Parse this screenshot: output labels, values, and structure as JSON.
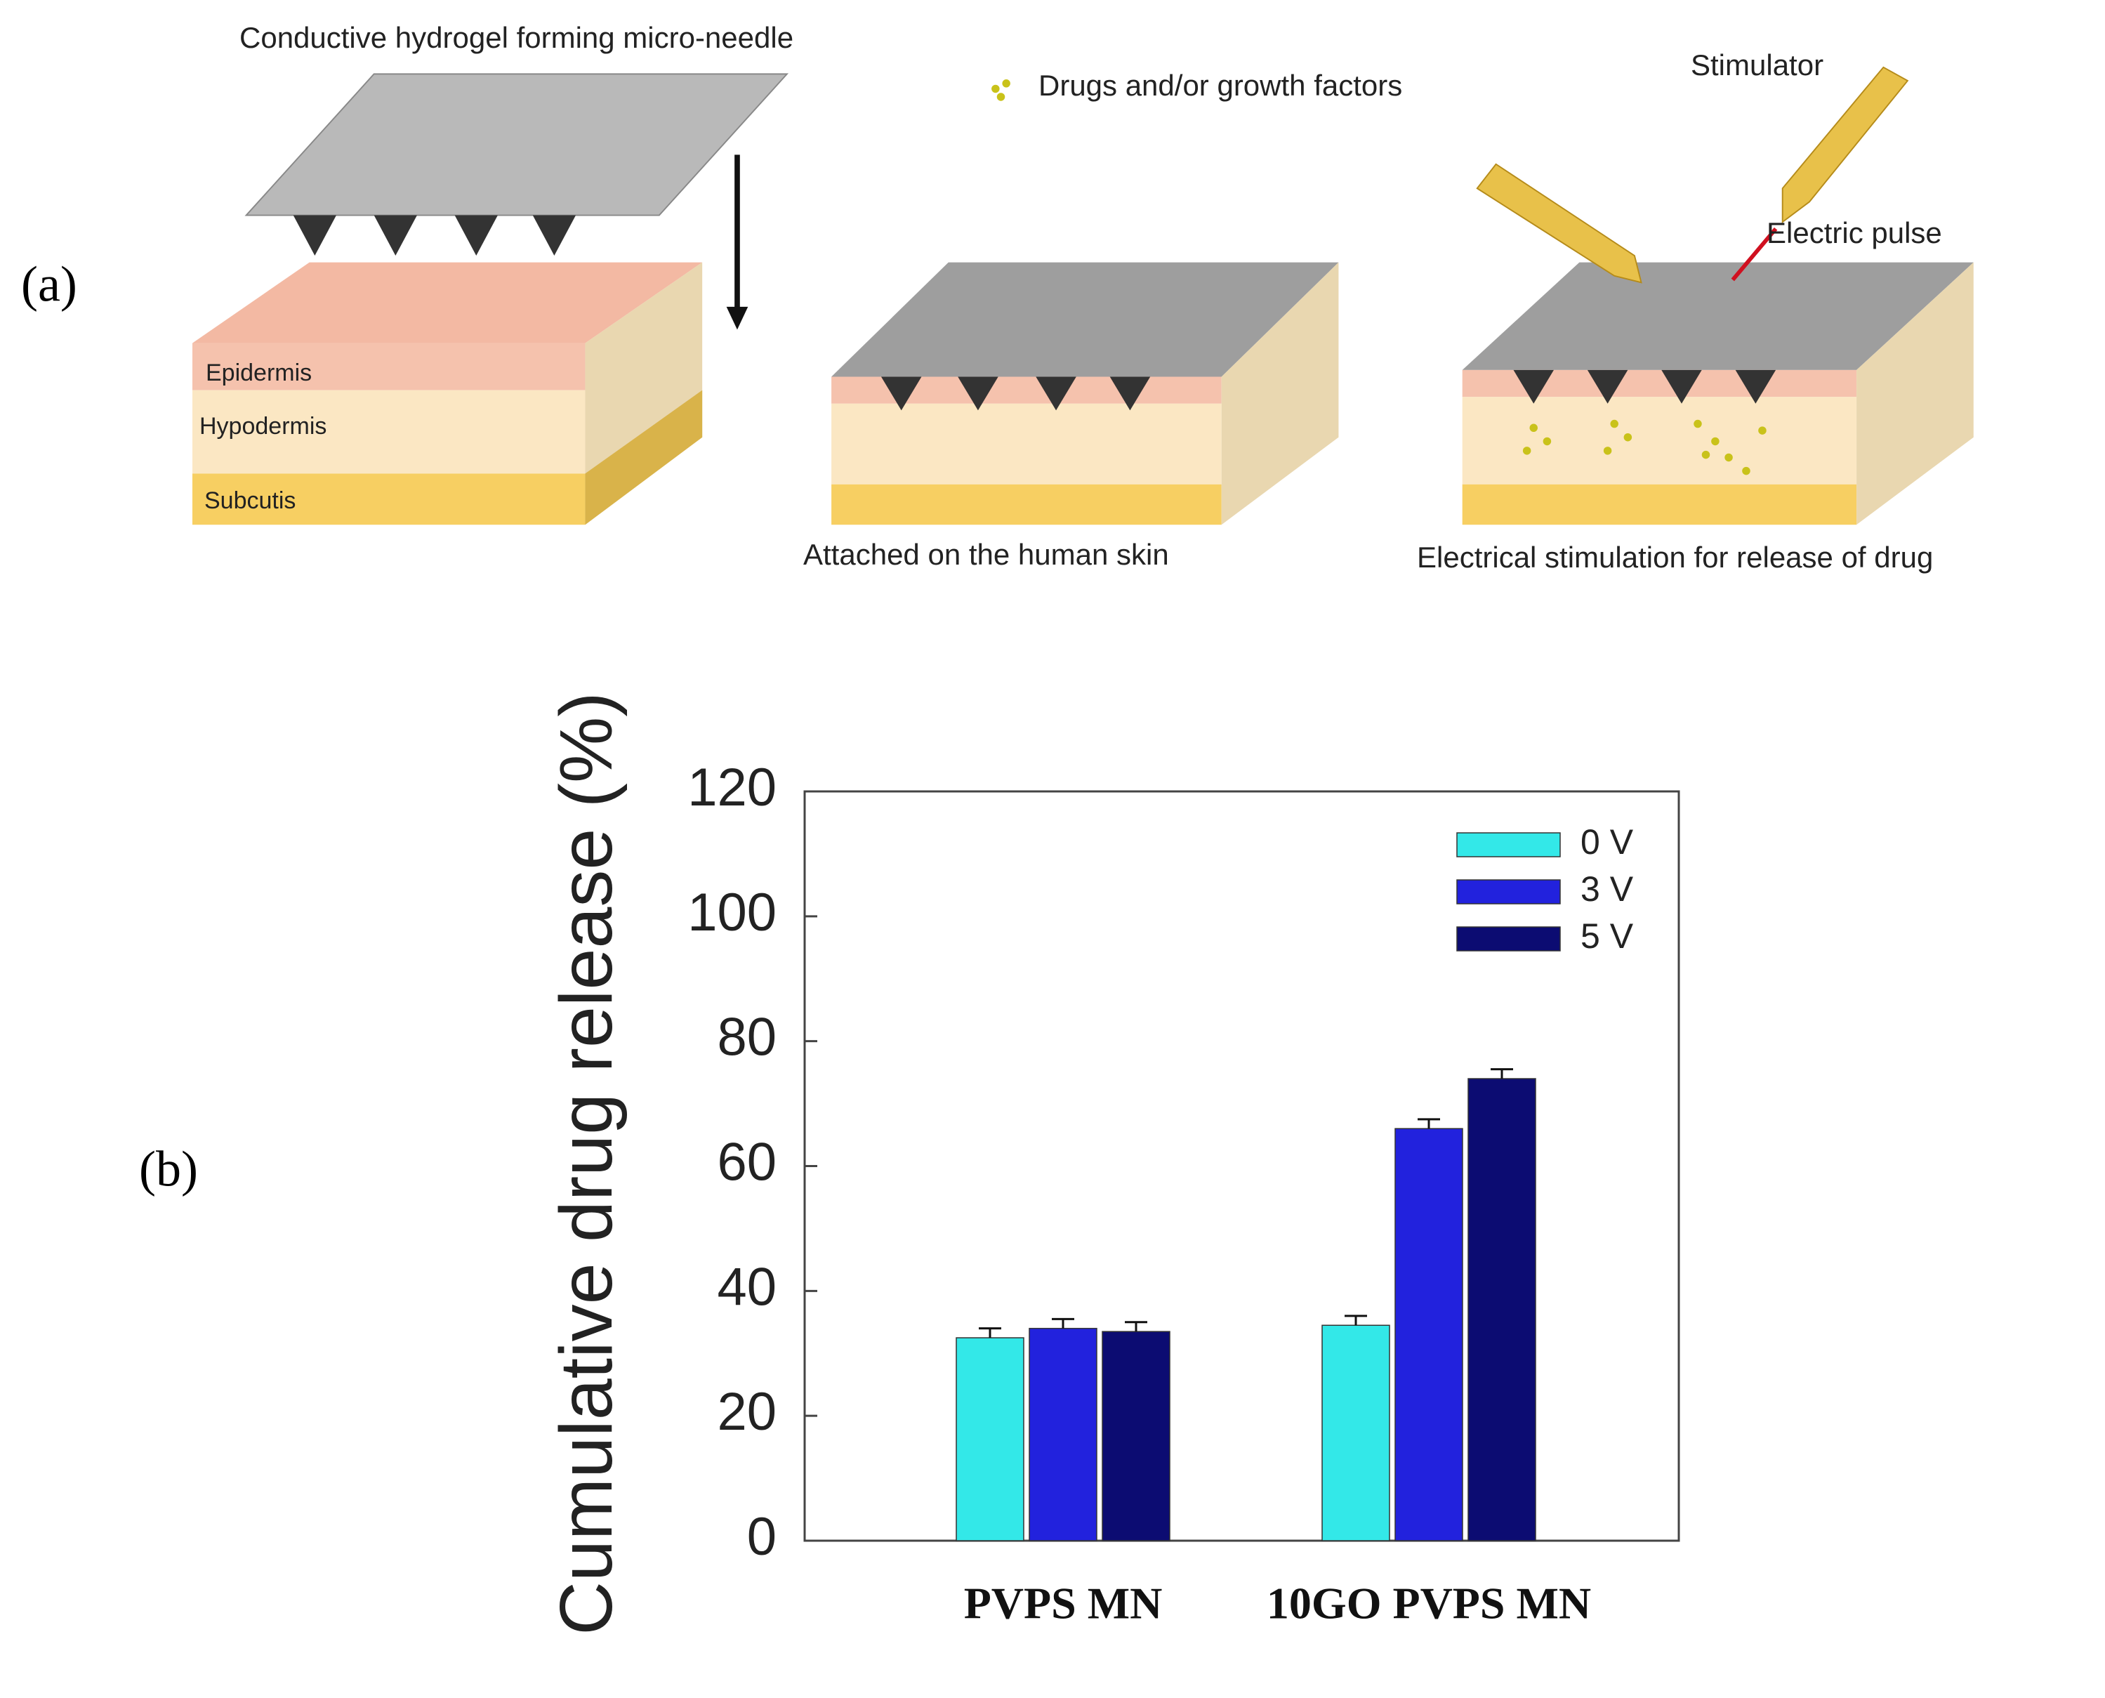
{
  "panel_a": {
    "label": "(a)",
    "plate_label": "Conductive hydrogel forming micro-needle",
    "drug_legend": "Drugs and/or growth factors",
    "stimulator": "Stimulator",
    "pulse": "Electric pulse",
    "layers": [
      "Epidermis",
      "Hypodermis",
      "Subcutis"
    ],
    "caption_attached": "Attached on the human skin",
    "caption_release": "Electrical stimulation for release of drug"
  },
  "panel_b": {
    "label": "(b)"
  },
  "chart_data": {
    "type": "bar",
    "y_label": "Cumulative drug release (%)",
    "categories": [
      "PVPS MN",
      "10GO PVPS MN"
    ],
    "series": [
      {
        "name": "0 V",
        "color": "#33e8e8",
        "values": [
          32.5,
          34.5
        ],
        "errors": [
          1.5,
          1.5
        ]
      },
      {
        "name": "3 V",
        "color": "#2222dd",
        "values": [
          34,
          66
        ],
        "errors": [
          1.5,
          1.5
        ]
      },
      {
        "name": "5 V",
        "color": "#0c0c72",
        "values": [
          33.5,
          74
        ],
        "errors": [
          1.5,
          1.5
        ]
      }
    ],
    "ylim": [
      0,
      120
    ],
    "yticks": [
      0,
      20,
      40,
      60,
      80,
      100,
      120
    ],
    "legend": "upper right"
  }
}
